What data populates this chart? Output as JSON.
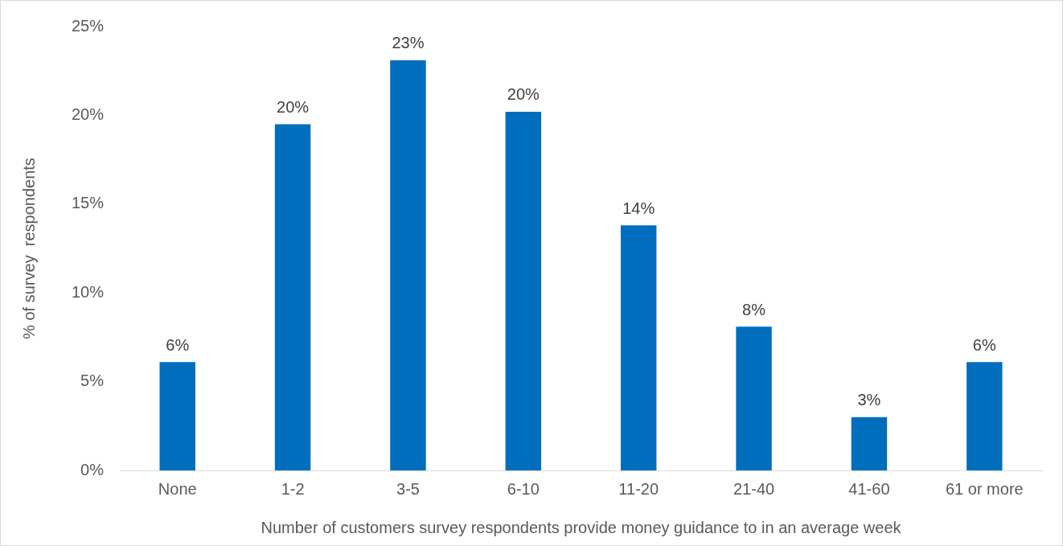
{
  "chart_data": {
    "type": "bar",
    "xlabel": "Number of customers survey respondents provide money guidance to in an average week",
    "ylabel": "% of survey  respondents",
    "categories": [
      "None",
      "1-2",
      "3-5",
      "6-10",
      "11-20",
      "21-40",
      "41-60",
      "61 or more"
    ],
    "values": [
      6.1,
      19.5,
      23.1,
      20.2,
      13.8,
      8.1,
      3.0,
      6.1
    ],
    "value_labels": [
      "6%",
      "20%",
      "23%",
      "20%",
      "14%",
      "8%",
      "3%",
      "6%"
    ],
    "color": "#006ebc",
    "ylim": [
      0,
      25
    ],
    "yticks": [
      {
        "value": 0,
        "label": "0%"
      },
      {
        "value": 5,
        "label": "5%"
      },
      {
        "value": 10,
        "label": "10%"
      },
      {
        "value": 15,
        "label": "15%"
      },
      {
        "value": 20,
        "label": "20%"
      },
      {
        "value": 25,
        "label": "25%"
      }
    ],
    "grid": false,
    "legend": false
  }
}
